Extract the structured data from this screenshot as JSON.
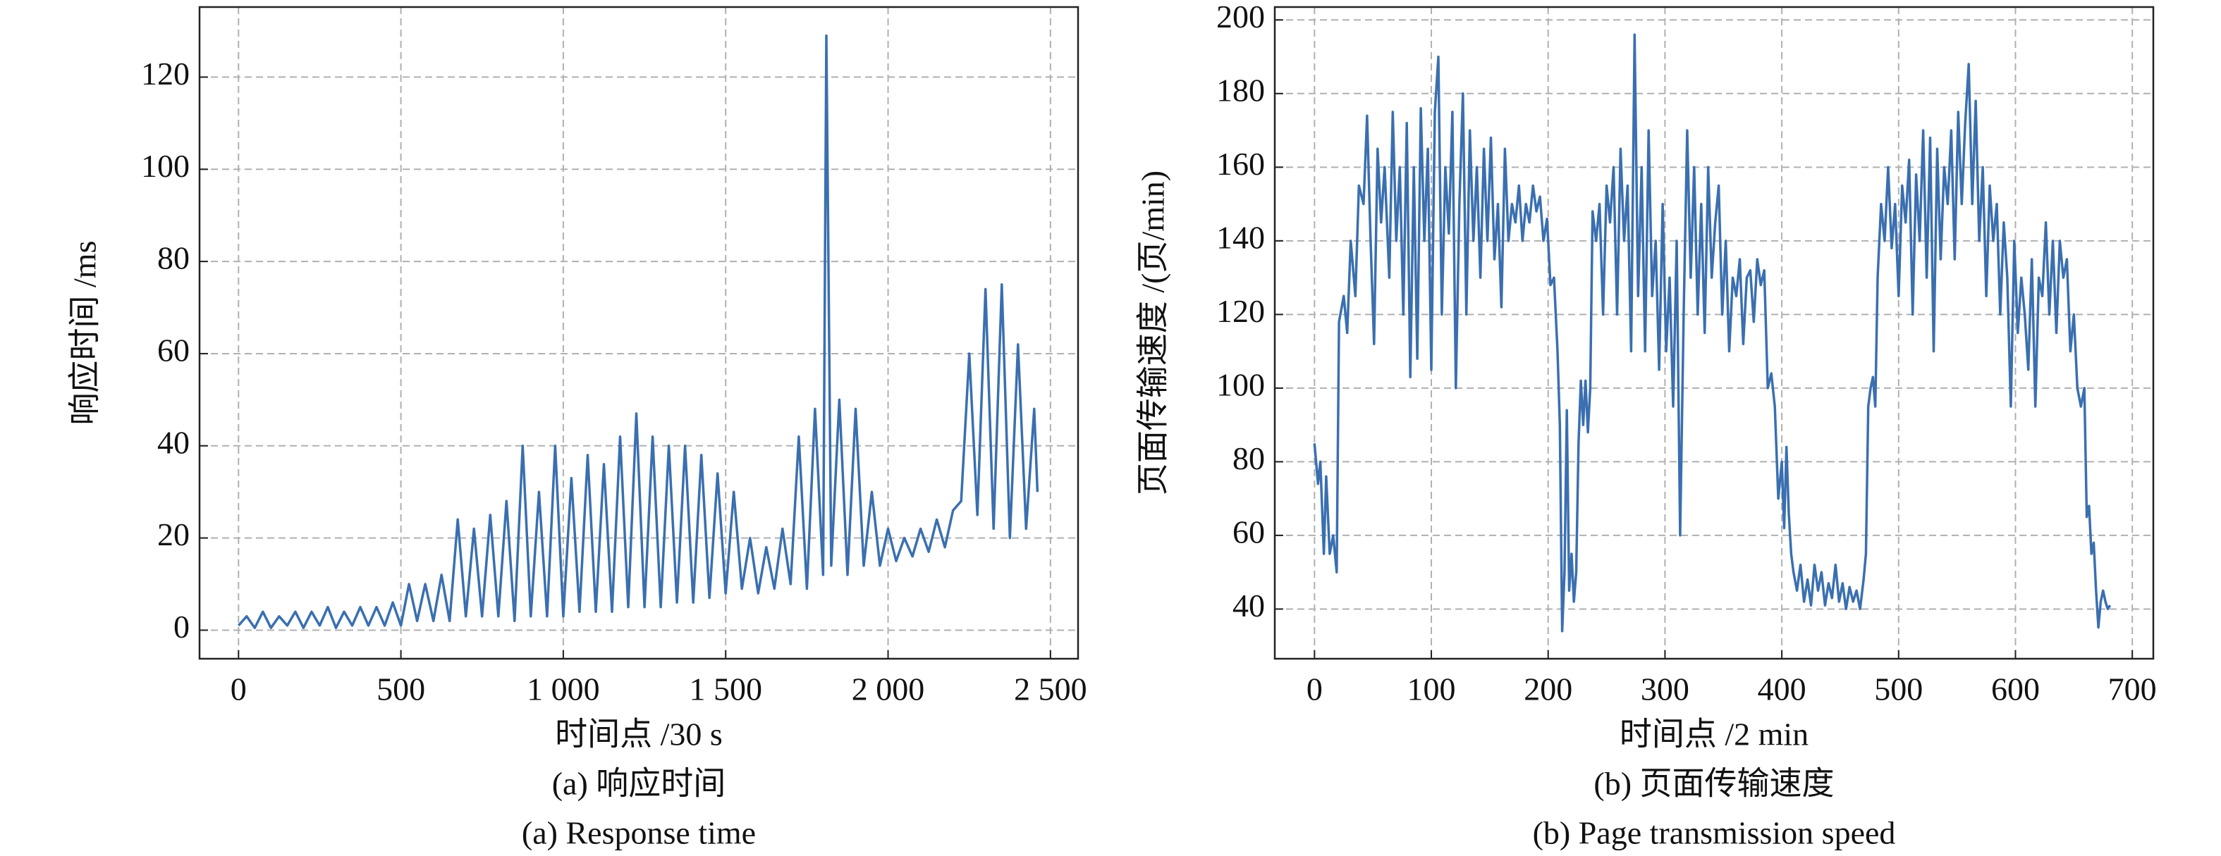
{
  "chart_data": [
    {
      "type": "line",
      "color": "#3a6fb0",
      "x_label": "时间点 /30 s",
      "y_label": "响应时间 /ms",
      "caption": "(a) 响应时间",
      "caption_en": "(a) Response time",
      "xlim": [
        -120,
        2585
      ],
      "ylim": [
        -6.2,
        135.2
      ],
      "grid": true,
      "xticks": [
        0,
        500,
        {
          "value": 1000,
          "label": "1 000"
        },
        {
          "value": 1500,
          "label": "1 500"
        },
        {
          "value": 2000,
          "label": "2 000"
        },
        {
          "value": 2500,
          "label": "2 500"
        }
      ],
      "yticks": [
        0,
        20,
        40,
        60,
        80,
        100,
        120
      ],
      "x": [
        0,
        25,
        50,
        75,
        100,
        125,
        150,
        175,
        200,
        225,
        250,
        275,
        300,
        325,
        350,
        375,
        400,
        425,
        450,
        475,
        500,
        525,
        550,
        575,
        600,
        625,
        650,
        675,
        700,
        725,
        750,
        775,
        800,
        825,
        850,
        875,
        900,
        925,
        950,
        975,
        1000,
        1025,
        1050,
        1075,
        1100,
        1125,
        1150,
        1175,
        1200,
        1225,
        1250,
        1275,
        1300,
        1325,
        1350,
        1375,
        1400,
        1425,
        1450,
        1475,
        1500,
        1525,
        1550,
        1575,
        1600,
        1625,
        1650,
        1675,
        1700,
        1725,
        1750,
        1775,
        1800,
        1810,
        1825,
        1850,
        1875,
        1900,
        1925,
        1950,
        1975,
        2000,
        2025,
        2050,
        2075,
        2100,
        2125,
        2150,
        2175,
        2200,
        2225,
        2250,
        2275,
        2300,
        2325,
        2350,
        2375,
        2400,
        2425,
        2450,
        2460
      ],
      "values": [
        1,
        3,
        0.5,
        4,
        0.5,
        3,
        1,
        4,
        0.5,
        4,
        1,
        5,
        0.5,
        4,
        1,
        5,
        1,
        5,
        1,
        6,
        1,
        10,
        2,
        10,
        2,
        12,
        2,
        24,
        3,
        22,
        3,
        25,
        3,
        28,
        2,
        40,
        3,
        30,
        3,
        40,
        3,
        33,
        4,
        38,
        4,
        36,
        4,
        42,
        5,
        47,
        5,
        42,
        5,
        40,
        6,
        40,
        6,
        38,
        7,
        34,
        8,
        30,
        9,
        20,
        8,
        18,
        9,
        22,
        10,
        42,
        9,
        48,
        12,
        129,
        14,
        50,
        12,
        48,
        14,
        30,
        14,
        22,
        15,
        20,
        16,
        22,
        17,
        24,
        18,
        26,
        28,
        60,
        25,
        74,
        22,
        75,
        20,
        62,
        22,
        48,
        30
      ]
    },
    {
      "type": "line",
      "color": "#3a6fb0",
      "x_label": "时间点 /2 min",
      "y_label": "页面传输速度 /(页/min)",
      "caption": "(b) 页面传输速度",
      "caption_en": "(b) Page transmission speed",
      "xlim": [
        -34,
        718
      ],
      "ylim": [
        26.5,
        203.5
      ],
      "grid": true,
      "xticks": [
        0,
        100,
        200,
        300,
        400,
        500,
        600,
        700
      ],
      "yticks": [
        40,
        60,
        80,
        100,
        120,
        140,
        160,
        180,
        200
      ],
      "x": [
        0,
        3,
        5,
        8,
        10,
        13,
        16,
        19,
        21,
        25,
        28,
        31,
        35,
        38,
        42,
        45,
        48,
        51,
        54,
        57,
        60,
        64,
        67,
        70,
        73,
        76,
        79,
        82,
        85,
        88,
        91,
        94,
        97,
        100,
        103,
        106,
        109,
        112,
        115,
        118,
        121,
        124,
        127,
        130,
        133,
        136,
        139,
        142,
        145,
        148,
        151,
        154,
        157,
        160,
        163,
        166,
        169,
        172,
        175,
        178,
        181,
        184,
        187,
        190,
        193,
        196,
        199,
        202,
        205,
        208,
        210,
        212,
        214,
        216,
        218,
        220,
        222,
        224,
        226,
        228,
        230,
        232,
        234,
        236,
        238,
        241,
        244,
        247,
        250,
        253,
        256,
        259,
        262,
        265,
        268,
        271,
        274,
        277,
        280,
        283,
        286,
        289,
        292,
        295,
        298,
        301,
        304,
        307,
        310,
        313,
        316,
        319,
        322,
        325,
        328,
        331,
        334,
        337,
        340,
        343,
        346,
        349,
        352,
        355,
        358,
        361,
        364,
        367,
        370,
        373,
        376,
        379,
        382,
        385,
        388,
        391,
        394,
        397,
        400,
        402,
        404,
        406,
        408,
        410,
        413,
        416,
        419,
        422,
        425,
        428,
        431,
        434,
        437,
        440,
        443,
        446,
        449,
        452,
        455,
        458,
        461,
        464,
        467,
        470,
        472,
        474,
        476,
        478,
        480,
        482,
        485,
        488,
        491,
        494,
        497,
        500,
        503,
        506,
        509,
        512,
        515,
        518,
        521,
        524,
        527,
        530,
        533,
        536,
        539,
        542,
        545,
        548,
        551,
        554,
        557,
        560,
        563,
        566,
        569,
        572,
        575,
        578,
        581,
        584,
        587,
        590,
        593,
        596,
        599,
        602,
        605,
        608,
        611,
        614,
        617,
        620,
        623,
        626,
        629,
        632,
        635,
        638,
        641,
        644,
        647,
        650,
        653,
        656,
        659,
        661,
        663,
        665,
        667,
        669,
        671,
        673,
        675,
        677,
        679,
        681
      ],
      "values": [
        85,
        74,
        80,
        55,
        76,
        55,
        60,
        50,
        118,
        125,
        115,
        140,
        125,
        155,
        150,
        174,
        140,
        112,
        165,
        145,
        160,
        130,
        175,
        140,
        160,
        120,
        172,
        103,
        160,
        108,
        176,
        140,
        165,
        105,
        175,
        190,
        120,
        160,
        142,
        175,
        100,
        150,
        180,
        120,
        170,
        140,
        160,
        130,
        165,
        140,
        168,
        135,
        150,
        122,
        165,
        140,
        150,
        145,
        155,
        140,
        150,
        145,
        155,
        148,
        152,
        140,
        146,
        128,
        130,
        110,
        90,
        34,
        50,
        94,
        45,
        55,
        42,
        50,
        85,
        102,
        90,
        102,
        88,
        100,
        148,
        140,
        150,
        120,
        155,
        145,
        160,
        120,
        165,
        140,
        155,
        110,
        196,
        125,
        160,
        110,
        170,
        125,
        140,
        105,
        150,
        110,
        130,
        95,
        140,
        60,
        120,
        170,
        130,
        160,
        120,
        150,
        115,
        160,
        130,
        145,
        155,
        120,
        140,
        110,
        130,
        125,
        135,
        112,
        130,
        132,
        118,
        135,
        128,
        132,
        100,
        104,
        95,
        70,
        80,
        62,
        84,
        66,
        55,
        50,
        45,
        52,
        42,
        48,
        41,
        52,
        45,
        50,
        41,
        47,
        43,
        52,
        42,
        47,
        40,
        46,
        42,
        45,
        40,
        48,
        55,
        95,
        100,
        103,
        95,
        130,
        150,
        140,
        160,
        138,
        150,
        125,
        155,
        145,
        162,
        120,
        158,
        140,
        170,
        130,
        168,
        110,
        165,
        135,
        160,
        150,
        170,
        135,
        175,
        150,
        172,
        188,
        150,
        178,
        140,
        160,
        125,
        155,
        140,
        150,
        120,
        145,
        130,
        95,
        140,
        115,
        130,
        120,
        105,
        135,
        95,
        130,
        125,
        145,
        120,
        140,
        115,
        140,
        130,
        135,
        110,
        120,
        100,
        95,
        100,
        65,
        68,
        55,
        58,
        45,
        35,
        42,
        45,
        42,
        40,
        41
      ]
    }
  ]
}
